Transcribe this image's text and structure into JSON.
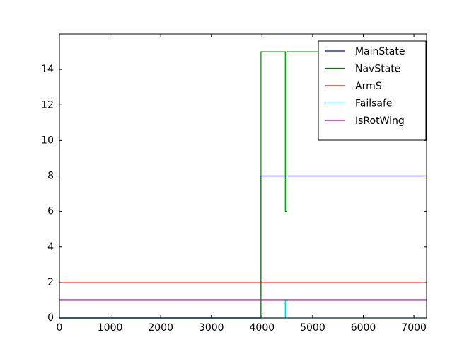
{
  "chart_data": {
    "type": "line",
    "x": [
      0,
      3980,
      3980,
      4460,
      4460,
      4490,
      4490,
      7250
    ],
    "series": [
      {
        "name": "MainState",
        "color": "#0000ff",
        "values": [
          0,
          0,
          8,
          8,
          8,
          8,
          8,
          8
        ]
      },
      {
        "name": "NavState",
        "color": "#008000",
        "values": [
          0,
          0,
          15,
          15,
          6,
          6,
          15,
          15
        ]
      },
      {
        "name": "ArmS",
        "color": "#ff0000",
        "values": [
          2,
          2,
          2,
          2,
          2,
          2,
          2,
          2
        ]
      },
      {
        "name": "Failsafe",
        "color": "#00bfbf",
        "values": [
          0,
          0,
          0,
          0,
          1,
          1,
          0,
          0
        ]
      },
      {
        "name": "IsRotWing",
        "color": "#bf00bf",
        "values": [
          1,
          1,
          1,
          1,
          1,
          1,
          1,
          1
        ]
      }
    ],
    "xlim": [
      0,
      7250
    ],
    "xticks": [
      0,
      1000,
      2000,
      3000,
      4000,
      5000,
      6000,
      7000
    ],
    "ylim": [
      0,
      16
    ],
    "yticks": [
      0,
      2,
      4,
      6,
      8,
      10,
      12,
      14
    ],
    "grid": false,
    "legend": "upper right"
  }
}
